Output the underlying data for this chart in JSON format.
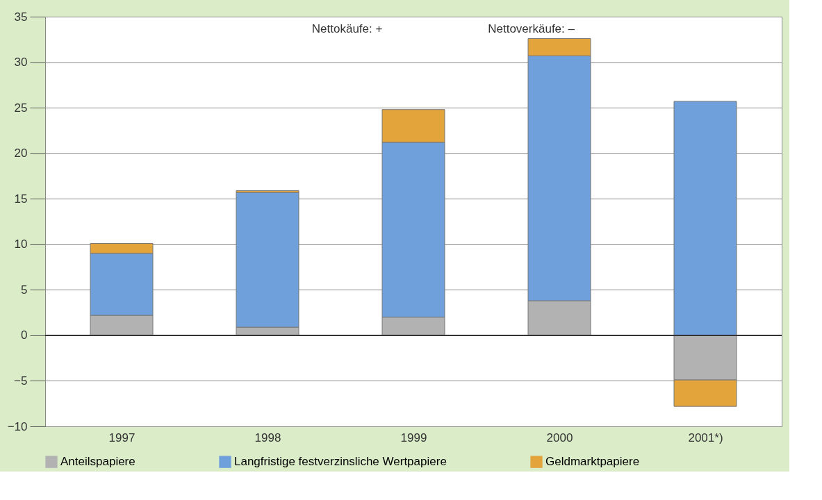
{
  "chart_data": {
    "type": "bar",
    "stacked": true,
    "categories": [
      "1997",
      "1998",
      "1999",
      "2000",
      "2001*)"
    ],
    "series": [
      {
        "name": "Anteilspapiere",
        "color": "#b2b2b2",
        "values": [
          2.2,
          0.9,
          2.0,
          3.8,
          -4.9
        ]
      },
      {
        "name": "Langfristige festverzinsliche Wertpapiere",
        "color": "#6fa0dc",
        "values": [
          6.8,
          14.8,
          19.2,
          26.9,
          25.7
        ]
      },
      {
        "name": "Geldmarktpapiere",
        "color": "#e3a43c",
        "values": [
          1.1,
          0.2,
          3.6,
          1.9,
          -2.9
        ]
      }
    ],
    "ylim": [
      -10,
      35
    ],
    "yticks": [
      -10,
      -5,
      0,
      5,
      10,
      15,
      20,
      25,
      30,
      35
    ],
    "grid": "y",
    "legend": "bottom",
    "ref_lines": [
      {
        "axis": "y",
        "value": 0,
        "color": "#333333"
      }
    ],
    "annotations": [
      "Nettokäufe: +",
      "Nettoverkäufe: –"
    ]
  }
}
